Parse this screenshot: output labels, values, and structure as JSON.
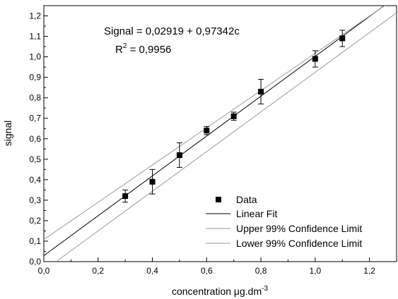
{
  "chart_data": {
    "type": "scatter",
    "title": "",
    "xlabel": "concentration μg.dm",
    "xlabel_sup": "-3",
    "ylabel": "signal",
    "xlim": [
      0.0,
      1.3
    ],
    "ylim": [
      0.0,
      1.25
    ],
    "grid": false,
    "x_ticks": [
      0.0,
      0.2,
      0.4,
      0.6,
      0.8,
      1.0,
      1.2
    ],
    "x_tick_labels": [
      "0,0",
      "0,2",
      "0,4",
      "0,6",
      "0,8",
      "1,0",
      "1,2"
    ],
    "y_ticks": [
      0.0,
      0.1,
      0.2,
      0.3,
      0.4,
      0.5,
      0.6,
      0.7,
      0.8,
      0.9,
      1.0,
      1.1,
      1.2
    ],
    "y_tick_labels": [
      "0,0",
      "0,1",
      "0,2",
      "0,3",
      "0,4",
      "0,5",
      "0,6",
      "0,7",
      "0,8",
      "0,9",
      "1,0",
      "1,1",
      "1,2"
    ],
    "series": [
      {
        "name": "Data",
        "kind": "points",
        "x": [
          0.3,
          0.4,
          0.5,
          0.6,
          0.7,
          0.8,
          1.0,
          1.1
        ],
        "y": [
          0.32,
          0.39,
          0.52,
          0.64,
          0.71,
          0.83,
          0.99,
          1.09
        ],
        "yerr": [
          0.03,
          0.06,
          0.06,
          0.02,
          0.02,
          0.06,
          0.04,
          0.04
        ],
        "color": "#000000"
      },
      {
        "name": "Linear Fit",
        "kind": "line",
        "intercept": 0.02919,
        "slope": 0.97342,
        "color": "#000000"
      },
      {
        "name": "Upper 99% Confidence Limit",
        "kind": "line",
        "x": [
          0.0,
          1.3
        ],
        "y": [
          0.108,
          1.29
        ],
        "color": "#999999"
      },
      {
        "name": "Lower 99% Confidence Limit",
        "kind": "line",
        "x": [
          0.045,
          1.3
        ],
        "y": [
          0.0,
          1.215
        ],
        "color": "#999999"
      }
    ],
    "annotations": {
      "equation": "Signal = 0,02919 + 0,97342c",
      "r2_prefix": "R",
      "r2_sup": "2",
      "r2_value": " = 0,9956"
    },
    "legend_position": "bottom-right"
  }
}
